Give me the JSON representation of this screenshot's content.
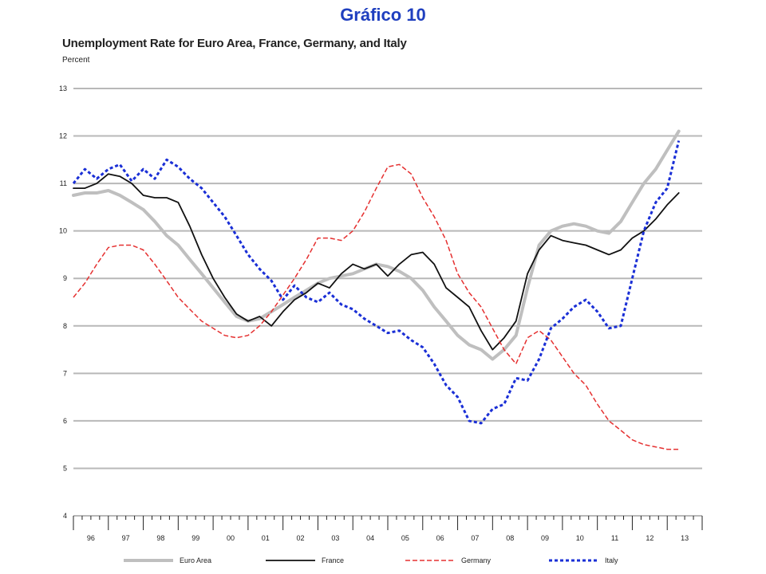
{
  "slide": {
    "title": "Gráfico 10"
  },
  "chart_data": {
    "type": "line",
    "title": "Unemployment Rate for Euro Area, France, Germany, and Italy",
    "ylabel": "Percent",
    "xlabel": "",
    "ylim": [
      4,
      13
    ],
    "yticks": [
      4,
      5,
      6,
      7,
      8,
      9,
      10,
      11,
      12,
      13
    ],
    "x_categories": [
      "96",
      "97",
      "98",
      "99",
      "00",
      "01",
      "02",
      "03",
      "04",
      "05",
      "06",
      "07",
      "08",
      "09",
      "10",
      "11",
      "12",
      "13"
    ],
    "x_domain": [
      1996.0,
      2014.0
    ],
    "grid": "horizontal",
    "legend_position": "bottom",
    "series": [
      {
        "name": "Euro Area",
        "color": "#bfbfbf",
        "style": "solid-thick",
        "points": [
          [
            1996.0,
            10.75
          ],
          [
            1996.33,
            10.8
          ],
          [
            1996.67,
            10.8
          ],
          [
            1997.0,
            10.85
          ],
          [
            1997.33,
            10.75
          ],
          [
            1997.67,
            10.6
          ],
          [
            1998.0,
            10.45
          ],
          [
            1998.33,
            10.2
          ],
          [
            1998.67,
            9.9
          ],
          [
            1999.0,
            9.7
          ],
          [
            1999.33,
            9.4
          ],
          [
            1999.67,
            9.1
          ],
          [
            2000.0,
            8.8
          ],
          [
            2000.33,
            8.5
          ],
          [
            2000.67,
            8.2
          ],
          [
            2001.0,
            8.1
          ],
          [
            2001.33,
            8.15
          ],
          [
            2001.67,
            8.3
          ],
          [
            2002.0,
            8.45
          ],
          [
            2002.33,
            8.6
          ],
          [
            2002.67,
            8.75
          ],
          [
            2003.0,
            8.9
          ],
          [
            2003.33,
            9.0
          ],
          [
            2003.67,
            9.05
          ],
          [
            2004.0,
            9.1
          ],
          [
            2004.33,
            9.2
          ],
          [
            2004.67,
            9.3
          ],
          [
            2005.0,
            9.25
          ],
          [
            2005.33,
            9.15
          ],
          [
            2005.67,
            9.0
          ],
          [
            2006.0,
            8.75
          ],
          [
            2006.33,
            8.4
          ],
          [
            2006.67,
            8.1
          ],
          [
            2007.0,
            7.8
          ],
          [
            2007.33,
            7.6
          ],
          [
            2007.67,
            7.5
          ],
          [
            2008.0,
            7.3
          ],
          [
            2008.33,
            7.5
          ],
          [
            2008.67,
            7.8
          ],
          [
            2009.0,
            8.8
          ],
          [
            2009.33,
            9.7
          ],
          [
            2009.67,
            10.0
          ],
          [
            2010.0,
            10.1
          ],
          [
            2010.33,
            10.15
          ],
          [
            2010.67,
            10.1
          ],
          [
            2011.0,
            10.0
          ],
          [
            2011.33,
            9.95
          ],
          [
            2011.67,
            10.2
          ],
          [
            2012.0,
            10.6
          ],
          [
            2012.33,
            11.0
          ],
          [
            2012.67,
            11.3
          ],
          [
            2013.0,
            11.7
          ],
          [
            2013.33,
            12.1
          ]
        ]
      },
      {
        "name": "France",
        "color": "#111111",
        "style": "solid",
        "points": [
          [
            1996.0,
            10.9
          ],
          [
            1996.33,
            10.9
          ],
          [
            1996.67,
            11.0
          ],
          [
            1997.0,
            11.2
          ],
          [
            1997.33,
            11.15
          ],
          [
            1997.67,
            11.0
          ],
          [
            1998.0,
            10.75
          ],
          [
            1998.33,
            10.7
          ],
          [
            1998.67,
            10.7
          ],
          [
            1999.0,
            10.6
          ],
          [
            1999.33,
            10.1
          ],
          [
            1999.67,
            9.5
          ],
          [
            2000.0,
            9.0
          ],
          [
            2000.33,
            8.6
          ],
          [
            2000.67,
            8.25
          ],
          [
            2001.0,
            8.1
          ],
          [
            2001.33,
            8.2
          ],
          [
            2001.67,
            8.0
          ],
          [
            2002.0,
            8.3
          ],
          [
            2002.33,
            8.55
          ],
          [
            2002.67,
            8.7
          ],
          [
            2003.0,
            8.9
          ],
          [
            2003.33,
            8.8
          ],
          [
            2003.67,
            9.1
          ],
          [
            2004.0,
            9.3
          ],
          [
            2004.33,
            9.2
          ],
          [
            2004.67,
            9.3
          ],
          [
            2005.0,
            9.05
          ],
          [
            2005.33,
            9.3
          ],
          [
            2005.67,
            9.5
          ],
          [
            2006.0,
            9.55
          ],
          [
            2006.33,
            9.3
          ],
          [
            2006.67,
            8.8
          ],
          [
            2007.0,
            8.6
          ],
          [
            2007.33,
            8.4
          ],
          [
            2007.67,
            7.9
          ],
          [
            2008.0,
            7.5
          ],
          [
            2008.33,
            7.75
          ],
          [
            2008.67,
            8.1
          ],
          [
            2009.0,
            9.1
          ],
          [
            2009.33,
            9.6
          ],
          [
            2009.67,
            9.9
          ],
          [
            2010.0,
            9.8
          ],
          [
            2010.33,
            9.75
          ],
          [
            2010.67,
            9.7
          ],
          [
            2011.0,
            9.6
          ],
          [
            2011.33,
            9.5
          ],
          [
            2011.67,
            9.6
          ],
          [
            2012.0,
            9.85
          ],
          [
            2012.33,
            10.0
          ],
          [
            2012.67,
            10.25
          ],
          [
            2013.0,
            10.55
          ],
          [
            2013.33,
            10.8
          ]
        ]
      },
      {
        "name": "Germany",
        "color": "#e53030",
        "style": "dashed",
        "points": [
          [
            1996.0,
            8.6
          ],
          [
            1996.33,
            8.9
          ],
          [
            1996.67,
            9.3
          ],
          [
            1997.0,
            9.65
          ],
          [
            1997.33,
            9.7
          ],
          [
            1997.67,
            9.7
          ],
          [
            1998.0,
            9.6
          ],
          [
            1998.33,
            9.3
          ],
          [
            1998.67,
            8.95
          ],
          [
            1999.0,
            8.6
          ],
          [
            1999.33,
            8.35
          ],
          [
            1999.67,
            8.1
          ],
          [
            2000.0,
            7.95
          ],
          [
            2000.33,
            7.8
          ],
          [
            2000.67,
            7.75
          ],
          [
            2001.0,
            7.8
          ],
          [
            2001.33,
            8.0
          ],
          [
            2001.67,
            8.3
          ],
          [
            2002.0,
            8.65
          ],
          [
            2002.33,
            9.0
          ],
          [
            2002.67,
            9.4
          ],
          [
            2003.0,
            9.85
          ],
          [
            2003.33,
            9.85
          ],
          [
            2003.67,
            9.8
          ],
          [
            2004.0,
            10.0
          ],
          [
            2004.33,
            10.4
          ],
          [
            2004.67,
            10.9
          ],
          [
            2005.0,
            11.35
          ],
          [
            2005.33,
            11.4
          ],
          [
            2005.67,
            11.2
          ],
          [
            2006.0,
            10.7
          ],
          [
            2006.33,
            10.3
          ],
          [
            2006.67,
            9.8
          ],
          [
            2007.0,
            9.1
          ],
          [
            2007.33,
            8.7
          ],
          [
            2007.67,
            8.4
          ],
          [
            2008.0,
            7.95
          ],
          [
            2008.33,
            7.5
          ],
          [
            2008.67,
            7.2
          ],
          [
            2009.0,
            7.75
          ],
          [
            2009.33,
            7.9
          ],
          [
            2009.67,
            7.7
          ],
          [
            2010.0,
            7.35
          ],
          [
            2010.33,
            7.0
          ],
          [
            2010.67,
            6.75
          ],
          [
            2011.0,
            6.35
          ],
          [
            2011.33,
            6.0
          ],
          [
            2011.67,
            5.8
          ],
          [
            2012.0,
            5.6
          ],
          [
            2012.33,
            5.5
          ],
          [
            2012.67,
            5.45
          ],
          [
            2013.0,
            5.4
          ],
          [
            2013.33,
            5.4
          ]
        ]
      },
      {
        "name": "Italy",
        "color": "#1a2fd6",
        "style": "dotted-thick",
        "points": [
          [
            1996.0,
            11.0
          ],
          [
            1996.33,
            11.3
          ],
          [
            1996.67,
            11.1
          ],
          [
            1997.0,
            11.3
          ],
          [
            1997.33,
            11.4
          ],
          [
            1997.67,
            11.05
          ],
          [
            1998.0,
            11.3
          ],
          [
            1998.33,
            11.1
          ],
          [
            1998.67,
            11.5
          ],
          [
            1999.0,
            11.35
          ],
          [
            1999.33,
            11.1
          ],
          [
            1999.67,
            10.9
          ],
          [
            2000.0,
            10.6
          ],
          [
            2000.33,
            10.3
          ],
          [
            2000.67,
            9.9
          ],
          [
            2001.0,
            9.5
          ],
          [
            2001.33,
            9.2
          ],
          [
            2001.67,
            8.95
          ],
          [
            2002.0,
            8.55
          ],
          [
            2002.33,
            8.85
          ],
          [
            2002.67,
            8.6
          ],
          [
            2003.0,
            8.5
          ],
          [
            2003.33,
            8.7
          ],
          [
            2003.67,
            8.45
          ],
          [
            2004.0,
            8.35
          ],
          [
            2004.33,
            8.15
          ],
          [
            2004.67,
            8.0
          ],
          [
            2005.0,
            7.85
          ],
          [
            2005.33,
            7.9
          ],
          [
            2005.67,
            7.7
          ],
          [
            2006.0,
            7.55
          ],
          [
            2006.33,
            7.2
          ],
          [
            2006.67,
            6.75
          ],
          [
            2007.0,
            6.5
          ],
          [
            2007.33,
            6.0
          ],
          [
            2007.67,
            5.95
          ],
          [
            2008.0,
            6.25
          ],
          [
            2008.33,
            6.35
          ],
          [
            2008.67,
            6.9
          ],
          [
            2009.0,
            6.85
          ],
          [
            2009.33,
            7.3
          ],
          [
            2009.67,
            7.95
          ],
          [
            2010.0,
            8.15
          ],
          [
            2010.33,
            8.4
          ],
          [
            2010.67,
            8.55
          ],
          [
            2011.0,
            8.3
          ],
          [
            2011.33,
            7.95
          ],
          [
            2011.67,
            8.0
          ],
          [
            2012.0,
            9.0
          ],
          [
            2012.33,
            10.0
          ],
          [
            2012.67,
            10.6
          ],
          [
            2013.0,
            10.9
          ],
          [
            2013.33,
            11.9
          ]
        ]
      }
    ]
  }
}
